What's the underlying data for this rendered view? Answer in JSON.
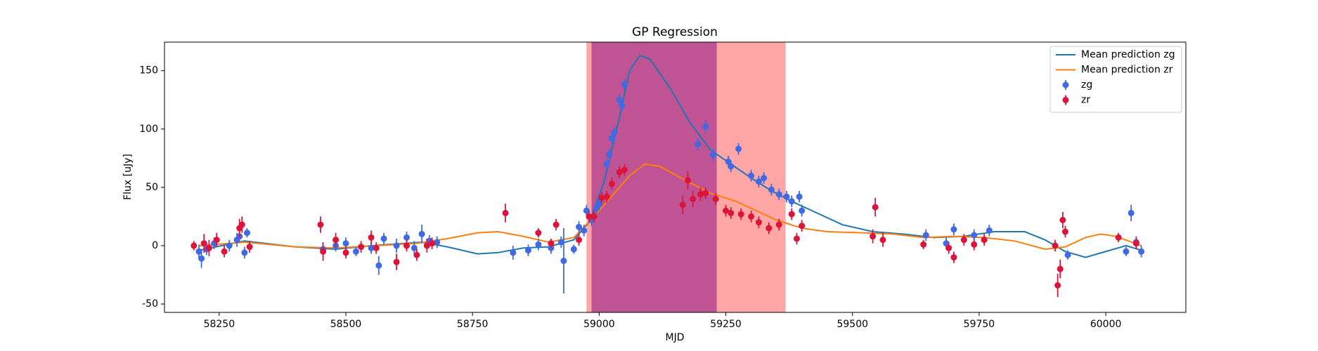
{
  "chart_data": {
    "type": "line",
    "title": "GP Regression",
    "xlabel": "MJD",
    "ylabel": "Flux [uJy]",
    "xlim": [
      58142,
      60158
    ],
    "ylim": [
      -57.2,
      174.5
    ],
    "xticks": [
      58250,
      58500,
      58750,
      59000,
      59250,
      59500,
      59750,
      60000
    ],
    "yticks": [
      -50,
      0,
      50,
      100,
      150
    ],
    "legend": "upper right",
    "spans": [
      {
        "xmin": 58975,
        "xmax": 59368,
        "color": "#ff0000",
        "alpha": 0.35
      },
      {
        "xmin": 58985,
        "xmax": 59232,
        "color": "#800080",
        "alpha": 0.5
      }
    ],
    "series": [
      {
        "name": "Mean prediction zg",
        "kind": "line",
        "color": "#1f77b4",
        "x": [
          58210,
          58300,
          58400,
          58480,
          58550,
          58650,
          58700,
          58760,
          58800,
          58850,
          58900,
          58950,
          58980,
          59010,
          59040,
          59060,
          59080,
          59100,
          59140,
          59180,
          59220,
          59260,
          59300,
          59340,
          59380,
          59420,
          59480,
          59540,
          59600,
          59660,
          59720,
          59780,
          59840,
          59880,
          59920,
          59960,
          60000,
          60040,
          60070
        ],
        "values": [
          -4,
          4,
          -1,
          -3,
          0,
          3,
          -1,
          -7,
          -6,
          -2,
          -1,
          5,
          20,
          55,
          110,
          150,
          163,
          160,
          135,
          105,
          82,
          70,
          58,
          47,
          38,
          30,
          18,
          12,
          10,
          7,
          8,
          12,
          12,
          5,
          -5,
          -10,
          -5,
          0,
          -4
        ]
      },
      {
        "name": "Mean prediction zr",
        "kind": "line",
        "color": "#ff7f0e",
        "x": [
          58210,
          58300,
          58400,
          58480,
          58560,
          58640,
          58700,
          58760,
          58800,
          58850,
          58900,
          58950,
          58990,
          59030,
          59060,
          59090,
          59120,
          59170,
          59220,
          59270,
          59310,
          59350,
          59400,
          59450,
          59520,
          59580,
          59640,
          59700,
          59760,
          59820,
          59880,
          59920,
          59960,
          59990,
          60020,
          60070
        ],
        "values": [
          0,
          3,
          -1,
          -2,
          0,
          2,
          6,
          11,
          12,
          8,
          3,
          7,
          25,
          45,
          60,
          70,
          68,
          56,
          45,
          38,
          30,
          22,
          15,
          12,
          11,
          10,
          7,
          8,
          7,
          4,
          -3,
          -1,
          7,
          10,
          8,
          0
        ]
      },
      {
        "name": "zg",
        "kind": "errorbar",
        "color": "#4169e1",
        "x": [
          58210,
          58215,
          58225,
          58240,
          58270,
          58285,
          58290,
          58300,
          58305,
          58455,
          58480,
          58500,
          58520,
          58550,
          58565,
          58575,
          58600,
          58620,
          58635,
          58650,
          58665,
          58680,
          58830,
          58860,
          58880,
          58905,
          58925,
          58930,
          58950,
          58960,
          58970,
          58975,
          58985,
          58995,
          59000,
          59015,
          59020,
          59025,
          59030,
          59040,
          59045,
          59050,
          59195,
          59210,
          59225,
          59255,
          59260,
          59275,
          59300,
          59315,
          59325,
          59340,
          59355,
          59370,
          59380,
          59395,
          59400,
          59645,
          59685,
          59700,
          59740,
          59770,
          59925,
          60040,
          60050,
          60060,
          60070
        ],
        "values": [
          -5,
          -11,
          -3,
          2,
          0,
          5,
          8,
          -6,
          11,
          -3,
          0,
          2,
          -5,
          -2,
          -17,
          6,
          0,
          7,
          -2,
          10,
          4,
          3,
          -6,
          -4,
          1,
          -2,
          3,
          -13,
          -3,
          16,
          13,
          30,
          22,
          32,
          36,
          70,
          78,
          92,
          97,
          125,
          120,
          138,
          87,
          102,
          78,
          72,
          68,
          83,
          60,
          55,
          58,
          48,
          44,
          42,
          38,
          42,
          30,
          9,
          2,
          14,
          9,
          13,
          -8,
          -5,
          28,
          3,
          -5
        ],
        "errors": [
          6,
          8,
          5,
          5,
          5,
          6,
          5,
          5,
          4,
          5,
          5,
          5,
          4,
          5,
          8,
          5,
          6,
          5,
          6,
          8,
          5,
          5,
          6,
          5,
          5,
          5,
          5,
          28,
          4,
          5,
          5,
          5,
          5,
          5,
          5,
          5,
          5,
          5,
          5,
          5,
          5,
          5,
          5,
          6,
          5,
          5,
          5,
          5,
          5,
          5,
          5,
          5,
          5,
          5,
          5,
          5,
          5,
          5,
          5,
          5,
          5,
          5,
          4,
          4,
          7,
          5,
          5
        ]
      },
      {
        "name": "zr",
        "kind": "errorbar",
        "color": "#dc143c",
        "x": [
          58200,
          58220,
          58230,
          58245,
          58260,
          58290,
          58295,
          58310,
          58450,
          58455,
          58480,
          58500,
          58530,
          58550,
          58560,
          58600,
          58620,
          58640,
          58660,
          58670,
          58815,
          58880,
          58905,
          58915,
          58960,
          58980,
          58990,
          59005,
          59015,
          59025,
          59040,
          59050,
          59165,
          59175,
          59185,
          59200,
          59210,
          59230,
          59250,
          59260,
          59280,
          59300,
          59315,
          59335,
          59355,
          59380,
          59390,
          59400,
          59540,
          59545,
          59560,
          59640,
          59690,
          59700,
          59720,
          59740,
          59760,
          59900,
          59905,
          59910,
          59915,
          59920,
          60025,
          60060
        ],
        "values": [
          0,
          2,
          -2,
          5,
          -5,
          15,
          18,
          -1,
          18,
          -5,
          5,
          -6,
          -1,
          7,
          -2,
          -14,
          0,
          -8,
          0,
          2,
          28,
          11,
          2,
          18,
          5,
          25,
          25,
          41,
          42,
          53,
          63,
          65,
          35,
          56,
          40,
          44,
          45,
          40,
          30,
          28,
          27,
          25,
          20,
          15,
          18,
          27,
          6,
          17,
          8,
          33,
          5,
          1,
          -2,
          -10,
          5,
          1,
          5,
          0,
          -34,
          -20,
          22,
          12,
          7,
          2
        ],
        "errors": [
          4,
          8,
          7,
          6,
          5,
          8,
          7,
          5,
          7,
          8,
          6,
          5,
          5,
          6,
          5,
          7,
          5,
          5,
          6,
          5,
          8,
          4,
          4,
          5,
          5,
          5,
          5,
          5,
          5,
          5,
          5,
          5,
          8,
          8,
          7,
          6,
          5,
          5,
          5,
          5,
          5,
          5,
          5,
          5,
          5,
          5,
          5,
          5,
          6,
          8,
          6,
          4,
          5,
          5,
          5,
          5,
          5,
          5,
          10,
          8,
          7,
          5,
          4,
          5
        ]
      }
    ]
  }
}
